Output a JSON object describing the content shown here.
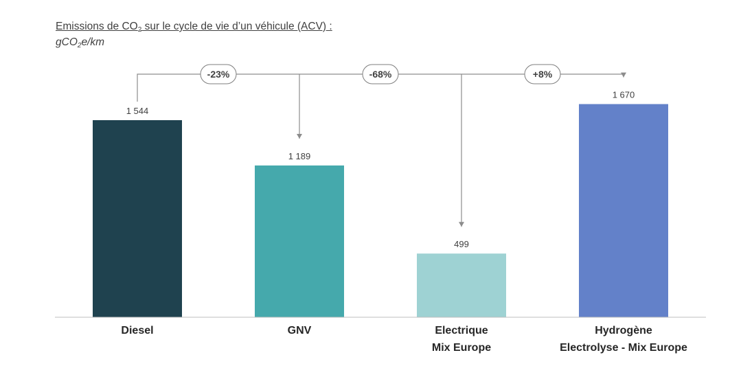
{
  "header": {
    "title_pre": "Emissions de CO",
    "title_sub": "2",
    "title_post": " sur le cycle de vie d’un véhicule (ACV)",
    "title_colon": " :",
    "unit_pre": "gCO",
    "unit_sub": "2",
    "unit_post": "e/km"
  },
  "chart_data": {
    "type": "bar",
    "title": "Emissions de CO2 sur le cycle de vie d’un véhicule (ACV) :",
    "ylabel": "gCO2e/km",
    "ylim": [
      0,
      1900
    ],
    "grid": false,
    "categories": [
      [
        "Diesel"
      ],
      [
        "GNV"
      ],
      [
        "Electrique",
        "Mix Europe"
      ],
      [
        "Hydrogène",
        "Electrolyse - Mix Europe"
      ]
    ],
    "values": [
      1544,
      1189,
      499,
      1670
    ],
    "value_labels": [
      "1 544",
      "1 189",
      "499",
      "1 670"
    ],
    "colors": [
      "#1f424f",
      "#45a9ac",
      "#9ed2d3",
      "#6381c9"
    ],
    "comparisons": [
      {
        "from": 0,
        "to": 1,
        "label": "-23%"
      },
      {
        "from": 0,
        "to": 2,
        "label": "-68%"
      },
      {
        "from": 0,
        "to": 3,
        "label": "+8%"
      }
    ]
  }
}
